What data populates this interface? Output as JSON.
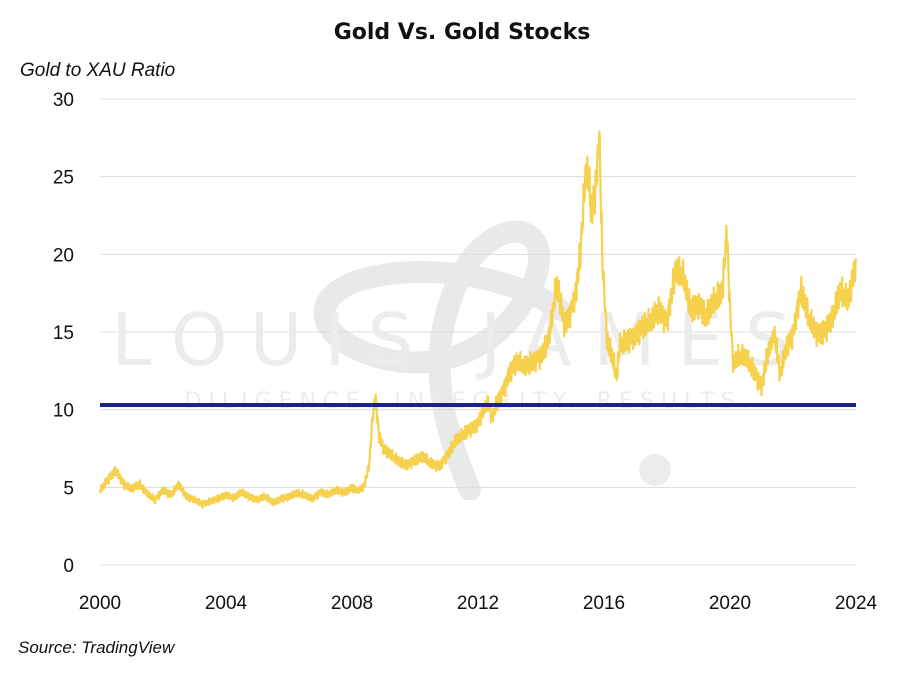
{
  "header": {
    "title": "Gold Vs. Gold Stocks"
  },
  "footer": {
    "source": "Source: TradingView"
  },
  "watermark": {
    "brand": "LOUIS JAMES",
    "tagline": "DILIGENCE. INTEGRITY. RESULTS."
  },
  "chart_data": {
    "type": "line",
    "title": "Gold Vs. Gold Stocks",
    "xlabel": "",
    "ylabel": "Gold to XAU Ratio",
    "xlim": [
      2000,
      2024
    ],
    "ylim": [
      0,
      30
    ],
    "grid": "horizontal",
    "legend": "none",
    "x_ticks": [
      "2000",
      "2004",
      "2008",
      "2012",
      "2016",
      "2020",
      "2024"
    ],
    "y_ticks": [
      "0",
      "5",
      "10",
      "15",
      "20",
      "25",
      "30"
    ],
    "series": [
      {
        "color": "#f5d14e",
        "x": [
          2000.0,
          2000.25,
          2000.5,
          2000.75,
          2001.0,
          2001.25,
          2001.5,
          2001.75,
          2002.0,
          2002.25,
          2002.5,
          2002.75,
          2003.0,
          2003.25,
          2003.5,
          2003.75,
          2004.0,
          2004.25,
          2004.5,
          2004.75,
          2005.0,
          2005.25,
          2005.5,
          2005.75,
          2006.0,
          2006.25,
          2006.5,
          2006.75,
          2007.0,
          2007.25,
          2007.5,
          2007.75,
          2008.0,
          2008.2,
          2008.4,
          2008.55,
          2008.65,
          2008.75,
          2008.85,
          2009.0,
          2009.25,
          2009.5,
          2009.75,
          2010.0,
          2010.25,
          2010.5,
          2010.75,
          2011.0,
          2011.25,
          2011.5,
          2011.75,
          2012.0,
          2012.15,
          2012.3,
          2012.45,
          2012.6,
          2012.75,
          2013.0,
          2013.25,
          2013.5,
          2013.75,
          2014.0,
          2014.25,
          2014.5,
          2014.75,
          2015.0,
          2015.1,
          2015.25,
          2015.4,
          2015.5,
          2015.6,
          2015.75,
          2015.85,
          2015.95,
          2016.1,
          2016.25,
          2016.4,
          2016.5,
          2016.75,
          2017.0,
          2017.25,
          2017.5,
          2017.75,
          2018.0,
          2018.25,
          2018.5,
          2018.75,
          2019.0,
          2019.25,
          2019.5,
          2019.75,
          2019.9,
          2020.0,
          2020.1,
          2020.25,
          2020.5,
          2020.75,
          2021.0,
          2021.2,
          2021.4,
          2021.6,
          2021.75,
          2022.0,
          2022.25,
          2022.5,
          2022.75,
          2023.0,
          2023.25,
          2023.5,
          2023.75,
          2024.0
        ],
        "y": [
          4.8,
          5.5,
          6.1,
          5.2,
          4.9,
          5.2,
          4.6,
          4.2,
          4.8,
          4.5,
          5.2,
          4.4,
          4.2,
          3.9,
          4.1,
          4.3,
          4.5,
          4.3,
          4.7,
          4.4,
          4.2,
          4.4,
          4.0,
          4.3,
          4.4,
          4.6,
          4.5,
          4.3,
          4.7,
          4.5,
          4.8,
          4.7,
          5.0,
          4.8,
          5.2,
          6.5,
          9.5,
          10.8,
          8.5,
          7.5,
          7.0,
          6.6,
          6.5,
          6.8,
          6.9,
          6.5,
          6.4,
          7.0,
          7.8,
          8.3,
          8.8,
          9.2,
          9.8,
          10.6,
          9.5,
          10.4,
          11.0,
          12.5,
          13.0,
          12.6,
          13.2,
          13.6,
          14.5,
          18.0,
          15.5,
          16.8,
          17.5,
          20.0,
          24.8,
          25.3,
          22.5,
          24.5,
          27.8,
          19.5,
          14.5,
          13.5,
          12.0,
          14.0,
          14.5,
          15.0,
          15.3,
          15.5,
          16.5,
          15.8,
          18.8,
          18.5,
          16.5,
          17.0,
          16.0,
          16.8,
          17.5,
          21.5,
          16.5,
          13.0,
          13.5,
          13.2,
          12.5,
          11.6,
          13.5,
          14.8,
          12.2,
          13.8,
          15.0,
          17.8,
          15.8,
          14.8,
          15.2,
          16.0,
          17.5,
          17.0,
          19.5
        ]
      }
    ],
    "reference_line": {
      "y": 10.3,
      "color": "#1c2385"
    }
  }
}
